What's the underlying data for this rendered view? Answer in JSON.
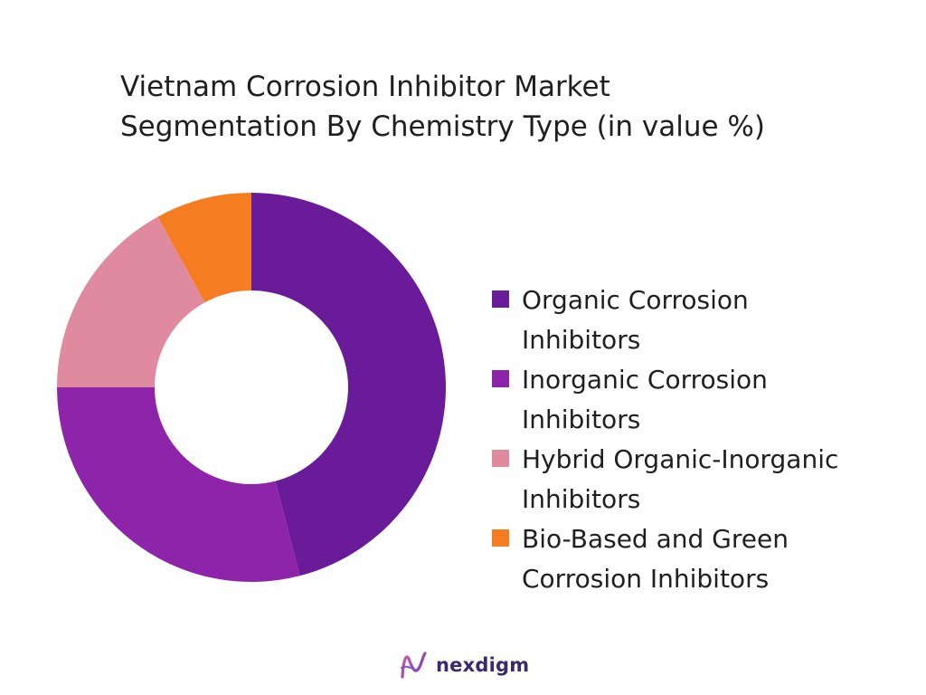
{
  "title_lines": [
    "Vietnam Corrosion Inhibitor Market",
    "Segmentation By Chemistry Type (in value %)"
  ],
  "chart_data": {
    "type": "pie",
    "subtype": "donut",
    "title": "Vietnam Corrosion Inhibitor Market Segmentation By Chemistry Type (in value %)",
    "categories": [
      "Organic Corrosion Inhibitors",
      "Inorganic Corrosion Inhibitors",
      "Hybrid Organic-Inorganic Inhibitors",
      "Bio-Based and Green Corrosion Inhibitors"
    ],
    "legend_lines": [
      [
        "Organic Corrosion",
        "Inhibitors"
      ],
      [
        "Inorganic Corrosion",
        "Inhibitors"
      ],
      [
        "Hybrid Organic-Inorganic",
        "Inhibitors"
      ],
      [
        "Bio-Based and Green",
        "Corrosion Inhibitors"
      ]
    ],
    "values": [
      46,
      29,
      17,
      8
    ],
    "colors": [
      "#6a1b9a",
      "#8e24aa",
      "#e08aa0",
      "#f57c20"
    ],
    "legend_position": "right"
  },
  "logo": {
    "text": "nexdigm"
  }
}
